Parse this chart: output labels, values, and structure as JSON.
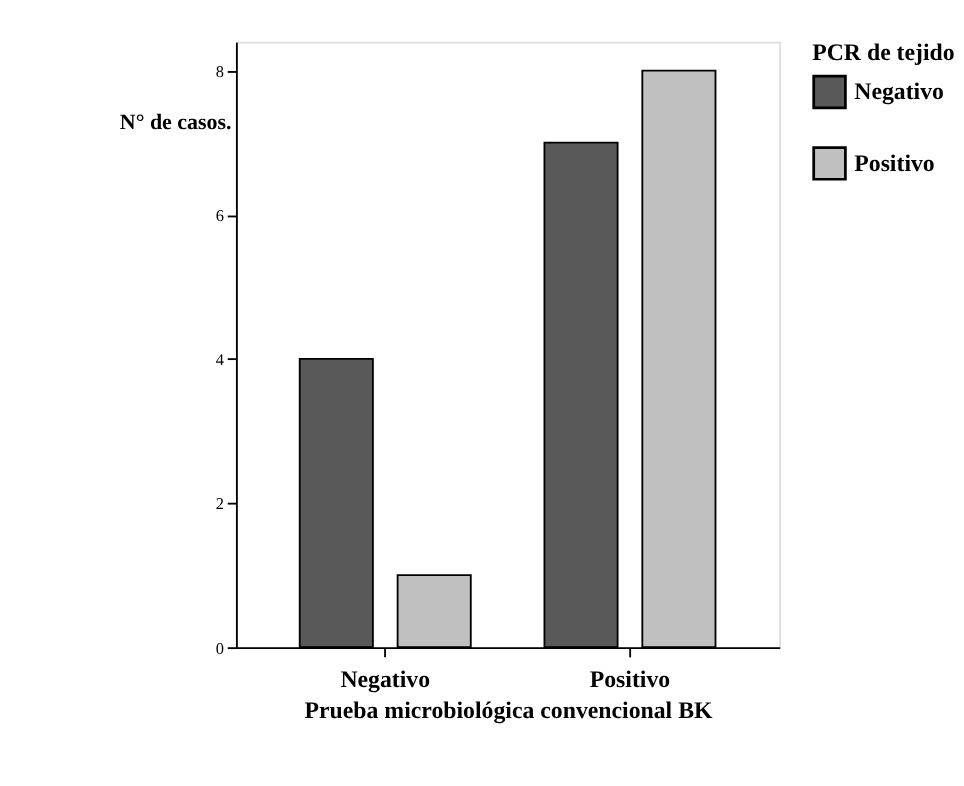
{
  "chart_data": {
    "type": "bar",
    "xlabel": "Prueba microbiológica convencional BK",
    "ylabel": "N° de casos.",
    "legend_title": "PCR de tejido",
    "categories": [
      "Negativo",
      "Positivo"
    ],
    "series": [
      {
        "name": "Negativo",
        "color": "#595959",
        "values": [
          4,
          7
        ]
      },
      {
        "name": "Positivo",
        "color": "#c0c0c0",
        "values": [
          1,
          8
        ]
      }
    ],
    "ylim": [
      0,
      8.4
    ],
    "yticks": [
      0,
      2,
      4,
      6,
      8
    ],
    "grid": false,
    "legend": "right"
  }
}
